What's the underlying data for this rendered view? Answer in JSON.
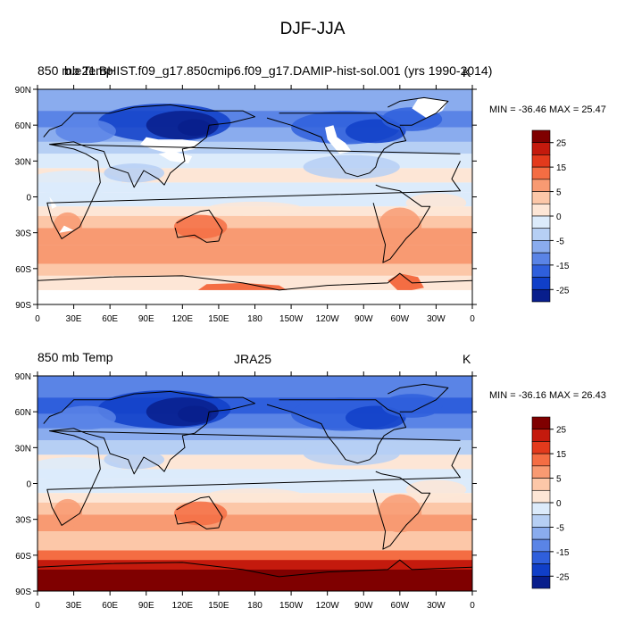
{
  "main_title": "DJF-JJA",
  "panels": [
    {
      "left_label": "850 mb Temp",
      "center_label": "b.e21.BHIST.f09_g17.850cmip6.f09_g17.DAMIP-hist-sol.001 (yrs 1990-2014)",
      "units_label": "K",
      "minmax_label": "MIN = -36.46 MAX =  25.47",
      "has_missing_data": true
    },
    {
      "left_label": "850 mb Temp",
      "center_label": "JRA25",
      "units_label": "K",
      "minmax_label": "MIN = -36.16 MAX =  26.43",
      "has_missing_data": false
    }
  ],
  "lat_ticks": [
    "90N",
    "60N",
    "30N",
    "0",
    "30S",
    "60S",
    "90S"
  ],
  "lon_ticks": [
    "0",
    "30E",
    "60E",
    "90E",
    "120E",
    "150E",
    "180",
    "150W",
    "120W",
    "90W",
    "60W",
    "30W",
    "0"
  ],
  "colorbar": {
    "labels": [
      "25",
      "15",
      "5",
      "0",
      "-5",
      "-15",
      "-25"
    ],
    "colors": [
      "#7f0000",
      "#c41a0d",
      "#e33a1c",
      "#f46d43",
      "#f89a72",
      "#fcc7a8",
      "#fde6d6",
      "#dcebfb",
      "#b6cff4",
      "#8aacee",
      "#5a84e6",
      "#2f5fdc",
      "#103fc8",
      "#081e8c"
    ]
  },
  "chart_data": {
    "type": "heatmap",
    "title": "DJF-JJA",
    "variable": "850 mb Temp",
    "units": "K",
    "x_ticks": [
      "0",
      "30E",
      "60E",
      "90E",
      "120E",
      "150E",
      "180",
      "150W",
      "120W",
      "90W",
      "60W",
      "30W",
      "0"
    ],
    "y_ticks": [
      "90N",
      "60N",
      "30N",
      "0",
      "30S",
      "60S",
      "90S"
    ],
    "colorbar_labels": [
      25,
      15,
      5,
      0,
      -5,
      -15,
      -25
    ],
    "panels": [
      {
        "name": "b.e21.BHIST.f09_g17.850cmip6.f09_g17.DAMIP-hist-sol.001 (yrs 1990-2014)",
        "min": -36.46,
        "max": 25.47
      },
      {
        "name": "JRA25",
        "min": -36.16,
        "max": 26.43
      }
    ]
  }
}
